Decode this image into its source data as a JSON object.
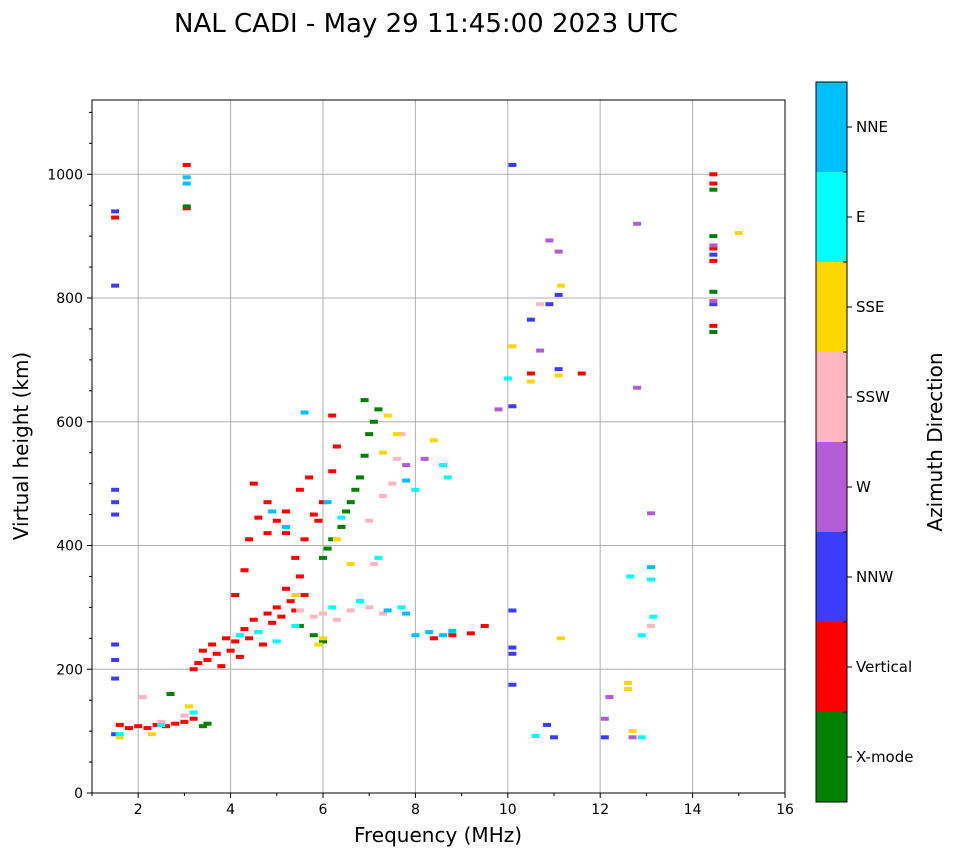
{
  "chart_data": {
    "type": "scatter",
    "title": "NAL CADI - May 29 11:45:00 2023 UTC",
    "xlabel": "Frequency (MHz)",
    "ylabel": "Virtual height (km)",
    "xlim": [
      1,
      16
    ],
    "ylim": [
      0,
      1120
    ],
    "xticks": [
      2,
      4,
      6,
      8,
      10,
      12,
      14,
      16
    ],
    "yticks": [
      0,
      200,
      400,
      600,
      800,
      1000
    ],
    "grid": true,
    "colorbar": {
      "label": "Azimuth Direction",
      "categories": [
        {
          "name": "X-mode",
          "color": "#008000"
        },
        {
          "name": "Vertical",
          "color": "#ff0000"
        },
        {
          "name": "NNW",
          "color": "#3c3cff"
        },
        {
          "name": "W",
          "color": "#b35cd6"
        },
        {
          "name": "SSW",
          "color": "#ffb6c1"
        },
        {
          "name": "SSE",
          "color": "#ffd700"
        },
        {
          "name": "E",
          "color": "#00ffff"
        },
        {
          "name": "NNE",
          "color": "#00bfff"
        }
      ]
    },
    "series": [
      {
        "name": "Vertical",
        "points": [
          [
            1.5,
            930
          ],
          [
            3.05,
            1015
          ],
          [
            3.05,
            945
          ],
          [
            1.6,
            110
          ],
          [
            1.8,
            105
          ],
          [
            2.0,
            108
          ],
          [
            2.2,
            105
          ],
          [
            2.4,
            110
          ],
          [
            2.6,
            108
          ],
          [
            2.8,
            112
          ],
          [
            3.0,
            115
          ],
          [
            3.2,
            120
          ],
          [
            3.2,
            200
          ],
          [
            3.3,
            210
          ],
          [
            3.4,
            230
          ],
          [
            3.5,
            215
          ],
          [
            3.6,
            240
          ],
          [
            3.7,
            225
          ],
          [
            3.8,
            205
          ],
          [
            3.9,
            250
          ],
          [
            4.0,
            230
          ],
          [
            4.1,
            245
          ],
          [
            4.2,
            220
          ],
          [
            4.3,
            265
          ],
          [
            4.4,
            250
          ],
          [
            4.5,
            280
          ],
          [
            4.6,
            260
          ],
          [
            4.7,
            240
          ],
          [
            4.8,
            290
          ],
          [
            4.9,
            275
          ],
          [
            5.0,
            300
          ],
          [
            5.1,
            285
          ],
          [
            5.2,
            330
          ],
          [
            5.3,
            310
          ],
          [
            5.4,
            295
          ],
          [
            5.5,
            350
          ],
          [
            5.6,
            320
          ],
          [
            4.1,
            320
          ],
          [
            4.3,
            360
          ],
          [
            4.4,
            410
          ],
          [
            4.6,
            445
          ],
          [
            4.8,
            420
          ],
          [
            5.0,
            440
          ],
          [
            5.2,
            420
          ],
          [
            5.4,
            380
          ],
          [
            5.6,
            410
          ],
          [
            5.8,
            450
          ],
          [
            6.0,
            470
          ],
          [
            6.2,
            520
          ],
          [
            6.3,
            560
          ],
          [
            6.2,
            610
          ],
          [
            4.5,
            500
          ],
          [
            4.8,
            470
          ],
          [
            5.2,
            455
          ],
          [
            5.5,
            490
          ],
          [
            5.7,
            510
          ],
          [
            5.9,
            440
          ],
          [
            8.4,
            250
          ],
          [
            8.8,
            255
          ],
          [
            9.2,
            258
          ],
          [
            9.5,
            270
          ],
          [
            10.5,
            678
          ],
          [
            11.6,
            678
          ],
          [
            14.45,
            1000
          ],
          [
            14.45,
            985
          ],
          [
            14.45,
            880
          ],
          [
            14.45,
            860
          ],
          [
            14.45,
            755
          ]
        ]
      },
      {
        "name": "X-mode",
        "points": [
          [
            3.05,
            948
          ],
          [
            2.7,
            160
          ],
          [
            3.5,
            112
          ],
          [
            3.4,
            108
          ],
          [
            6.0,
            380
          ],
          [
            6.1,
            395
          ],
          [
            6.2,
            410
          ],
          [
            6.4,
            430
          ],
          [
            6.5,
            455
          ],
          [
            6.6,
            470
          ],
          [
            6.7,
            490
          ],
          [
            6.8,
            510
          ],
          [
            6.9,
            545
          ],
          [
            7.0,
            580
          ],
          [
            7.1,
            600
          ],
          [
            6.9,
            635
          ],
          [
            7.2,
            620
          ],
          [
            5.8,
            255
          ],
          [
            6.0,
            245
          ],
          [
            5.5,
            270
          ],
          [
            14.45,
            975
          ],
          [
            14.45,
            900
          ],
          [
            14.45,
            810
          ],
          [
            14.45,
            745
          ]
        ]
      },
      {
        "name": "NNW",
        "points": [
          [
            1.5,
            820
          ],
          [
            1.5,
            940
          ],
          [
            1.5,
            490
          ],
          [
            1.5,
            470
          ],
          [
            1.5,
            450
          ],
          [
            1.5,
            240
          ],
          [
            1.5,
            215
          ],
          [
            1.5,
            185
          ],
          [
            1.5,
            95
          ],
          [
            10.1,
            1015
          ],
          [
            11.1,
            805
          ],
          [
            10.9,
            790
          ],
          [
            10.5,
            765
          ],
          [
            11.1,
            685
          ],
          [
            10.1,
            625
          ],
          [
            10.1,
            295
          ],
          [
            10.1,
            235
          ],
          [
            10.1,
            225
          ],
          [
            10.1,
            175
          ],
          [
            10.85,
            110
          ],
          [
            11.0,
            90
          ],
          [
            12.1,
            90
          ],
          [
            14.45,
            790
          ],
          [
            14.45,
            870
          ]
        ]
      },
      {
        "name": "W",
        "points": [
          [
            10.9,
            893
          ],
          [
            11.1,
            875
          ],
          [
            12.8,
            920
          ],
          [
            12.8,
            655
          ],
          [
            13.1,
            452
          ],
          [
            10.7,
            715
          ],
          [
            9.8,
            620
          ],
          [
            12.2,
            155
          ],
          [
            12.1,
            120
          ],
          [
            12.7,
            90
          ],
          [
            8.2,
            540
          ],
          [
            7.8,
            530
          ],
          [
            14.45,
            795
          ],
          [
            14.45,
            885
          ]
        ]
      },
      {
        "name": "SSW",
        "points": [
          [
            2.1,
            155
          ],
          [
            2.5,
            115
          ],
          [
            3.0,
            125
          ],
          [
            5.5,
            295
          ],
          [
            5.8,
            285
          ],
          [
            6.0,
            290
          ],
          [
            6.3,
            280
          ],
          [
            6.6,
            295
          ],
          [
            7.0,
            300
          ],
          [
            7.3,
            290
          ],
          [
            7.1,
            370
          ],
          [
            7.0,
            440
          ],
          [
            7.3,
            480
          ],
          [
            7.5,
            500
          ],
          [
            7.6,
            540
          ],
          [
            7.7,
            580
          ],
          [
            13.1,
            270
          ],
          [
            10.7,
            790
          ]
        ]
      },
      {
        "name": "SSE",
        "points": [
          [
            1.6,
            90
          ],
          [
            2.3,
            95
          ],
          [
            3.1,
            140
          ],
          [
            6.0,
            250
          ],
          [
            5.9,
            240
          ],
          [
            5.4,
            320
          ],
          [
            6.3,
            410
          ],
          [
            6.6,
            370
          ],
          [
            7.3,
            550
          ],
          [
            7.4,
            610
          ],
          [
            7.6,
            580
          ],
          [
            8.4,
            570
          ],
          [
            12.6,
            178
          ],
          [
            12.6,
            168
          ],
          [
            12.7,
            100
          ],
          [
            15.0,
            905
          ],
          [
            10.1,
            722
          ],
          [
            10.5,
            665
          ],
          [
            11.1,
            675
          ],
          [
            11.15,
            820
          ],
          [
            11.15,
            250
          ]
        ]
      },
      {
        "name": "E",
        "points": [
          [
            1.6,
            95
          ],
          [
            2.5,
            110
          ],
          [
            3.2,
            130
          ],
          [
            4.2,
            255
          ],
          [
            4.6,
            260
          ],
          [
            5.0,
            245
          ],
          [
            5.4,
            270
          ],
          [
            6.2,
            300
          ],
          [
            6.8,
            310
          ],
          [
            7.2,
            380
          ],
          [
            7.7,
            300
          ],
          [
            8.0,
            490
          ],
          [
            8.6,
            530
          ],
          [
            8.7,
            510
          ],
          [
            12.65,
            350
          ],
          [
            13.1,
            345
          ],
          [
            13.15,
            285
          ],
          [
            12.9,
            255
          ],
          [
            10.6,
            92
          ],
          [
            12.9,
            90
          ],
          [
            10.0,
            670
          ],
          [
            6.4,
            445
          ]
        ]
      },
      {
        "name": "NNE",
        "points": [
          [
            3.05,
            995
          ],
          [
            3.05,
            985
          ],
          [
            5.2,
            430
          ],
          [
            4.9,
            455
          ],
          [
            6.1,
            470
          ],
          [
            7.4,
            295
          ],
          [
            7.8,
            290
          ],
          [
            8.0,
            255
          ],
          [
            8.3,
            260
          ],
          [
            8.6,
            255
          ],
          [
            8.8,
            262
          ],
          [
            13.1,
            365
          ],
          [
            5.6,
            615
          ],
          [
            7.8,
            505
          ]
        ]
      }
    ]
  }
}
